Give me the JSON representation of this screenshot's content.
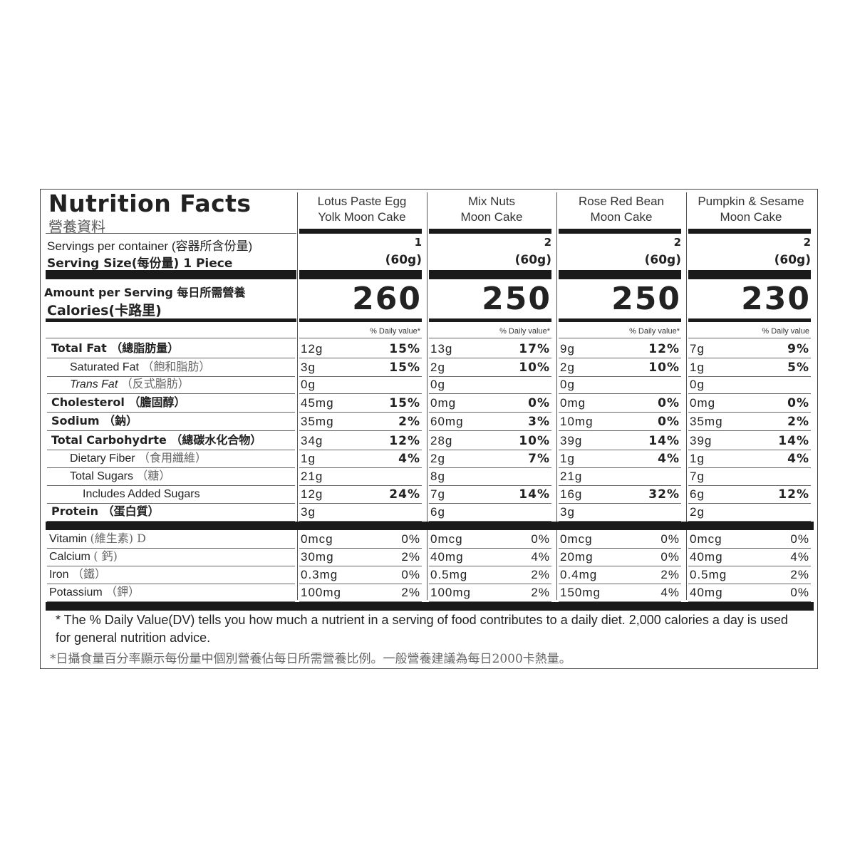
{
  "title": "Nutrition Facts",
  "title_cn": "營養資料",
  "servings_label": "Servings per container (容器所含份量)",
  "serving_size_label": "Serving Size(每份量)  1  Piece",
  "amount_label": "Amount per Serving 每日所需營養",
  "calories_label": "Calories(卡路里)",
  "products": [
    {
      "name_line1": "Lotus Paste Egg",
      "name_line2": "Yolk Moon Cake",
      "servings": "1",
      "serving_size": "(60g)",
      "calories": "260",
      "dv_header": "% Daily value*"
    },
    {
      "name_line1": "Mix Nuts",
      "name_line2": "Moon Cake",
      "servings": "2",
      "serving_size": "(60g)",
      "calories": "250",
      "dv_header": "% Daily value*"
    },
    {
      "name_line1": "Rose Red Bean",
      "name_line2": "Moon Cake",
      "servings": "2",
      "serving_size": "(60g)",
      "calories": "250",
      "dv_header": "% Daily value*"
    },
    {
      "name_line1": "Pumpkin & Sesame",
      "name_line2": "Moon Cake",
      "servings": "2",
      "serving_size": "(60g)",
      "calories": "230",
      "dv_header": "% Daily value"
    }
  ],
  "nutrients": [
    {
      "label": "Total Fat",
      "cn": "（總脂肪量）",
      "style": "main",
      "values": [
        [
          "12g",
          "15%"
        ],
        [
          "13g",
          "17%"
        ],
        [
          "9g",
          "12%"
        ],
        [
          "7g",
          "9%"
        ]
      ]
    },
    {
      "label": "Saturated Fat",
      "cn": "（飽和脂肪）",
      "style": "sub",
      "values": [
        [
          "3g",
          "15%"
        ],
        [
          "2g",
          "10%"
        ],
        [
          "2g",
          "10%"
        ],
        [
          "1g",
          "5%"
        ]
      ]
    },
    {
      "label": "Trans Fat",
      "cn": "（反式脂肪）",
      "style": "sub-italic",
      "values": [
        [
          "0g",
          ""
        ],
        [
          "0g",
          ""
        ],
        [
          "0g",
          ""
        ],
        [
          "0g",
          ""
        ]
      ]
    },
    {
      "label": "Cholesterol",
      "cn": "（膽固醇）",
      "style": "main",
      "values": [
        [
          "45mg",
          "15%"
        ],
        [
          "0mg",
          "0%"
        ],
        [
          "0mg",
          "0%"
        ],
        [
          "0mg",
          "0%"
        ]
      ]
    },
    {
      "label": "Sodium",
      "cn": "（鈉）",
      "style": "main",
      "values": [
        [
          "35mg",
          "2%"
        ],
        [
          "60mg",
          "3%"
        ],
        [
          "10mg",
          "0%"
        ],
        [
          "35mg",
          "2%"
        ]
      ]
    },
    {
      "label": "Total Carbohydrte",
      "cn": "（總碳水化合物）",
      "style": "main",
      "values": [
        [
          "34g",
          "12%"
        ],
        [
          "28g",
          "10%"
        ],
        [
          "39g",
          "14%"
        ],
        [
          "39g",
          "14%"
        ]
      ]
    },
    {
      "label": "Dietary Fiber",
      "cn": "（食用纖維）",
      "style": "sub",
      "values": [
        [
          "1g",
          "4%"
        ],
        [
          "2g",
          "7%"
        ],
        [
          "1g",
          "4%"
        ],
        [
          "1g",
          "4%"
        ]
      ]
    },
    {
      "label": "Total Sugars",
      "cn": "（糖）",
      "style": "sub",
      "values": [
        [
          "21g",
          ""
        ],
        [
          "8g",
          ""
        ],
        [
          "21g",
          ""
        ],
        [
          "7g",
          ""
        ]
      ]
    },
    {
      "label": "Includes Added Sugars",
      "cn": "",
      "style": "sub2",
      "values": [
        [
          "12g",
          "24%"
        ],
        [
          "7g",
          "14%"
        ],
        [
          "16g",
          "32%"
        ],
        [
          "6g",
          "12%"
        ]
      ]
    },
    {
      "label": "Protein",
      "cn": "（蛋白質）",
      "style": "main",
      "values": [
        [
          "3g",
          ""
        ],
        [
          "6g",
          ""
        ],
        [
          "3g",
          ""
        ],
        [
          "2g",
          ""
        ]
      ]
    },
    {
      "label": "Vitamin",
      "cn": "(維生素) D",
      "style": "vit",
      "values": [
        [
          "0mcg",
          "0%"
        ],
        [
          "0mcg",
          "0%"
        ],
        [
          "0mcg",
          "0%"
        ],
        [
          "0mcg",
          "0%"
        ]
      ]
    },
    {
      "label": "Calcium",
      "cn": "( 鈣)",
      "style": "vit",
      "values": [
        [
          "30mg",
          "2%"
        ],
        [
          "40mg",
          "4%"
        ],
        [
          "20mg",
          "0%"
        ],
        [
          "40mg",
          "4%"
        ]
      ]
    },
    {
      "label": "Iron",
      "cn": "（鐵）",
      "style": "vit",
      "values": [
        [
          "0.3mg",
          "0%"
        ],
        [
          "0.5mg",
          "2%"
        ],
        [
          "0.4mg",
          "2%"
        ],
        [
          "0.5mg",
          "2%"
        ]
      ]
    },
    {
      "label": "Potassium",
      "cn": "（鉀）",
      "style": "vit",
      "values": [
        [
          "100mg",
          "2%"
        ],
        [
          "100mg",
          "2%"
        ],
        [
          "150mg",
          "4%"
        ],
        [
          "40mg",
          "0%"
        ]
      ]
    }
  ],
  "footnote": "* The %  Daily Value(DV) tells you how much a nutrient in a serving of food contributes to a daily diet. 2,000 calories a day is used for general nutrition advice.",
  "footnote_cn": "*日攝食量百分率顯示每份量中個別營養佔每日所需營養比例。一般營養建議為每日2000卡熱量。"
}
